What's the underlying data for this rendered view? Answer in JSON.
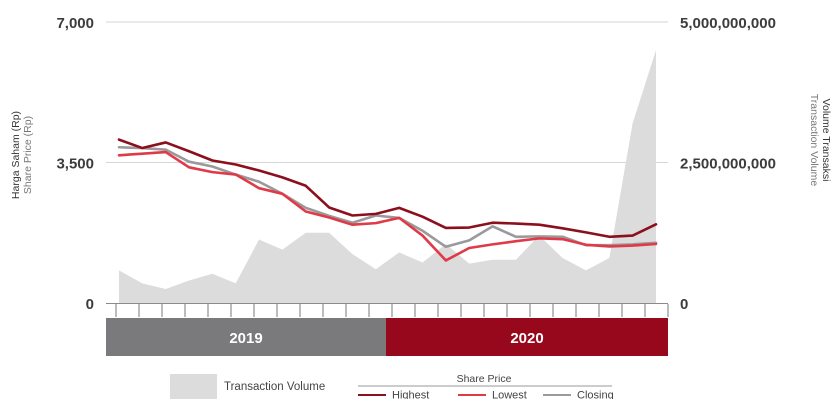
{
  "chart_data": {
    "type": "line",
    "ylabel_left": [
      "Harga Saham (Rp)",
      "Share Price (Rp)"
    ],
    "ylabel_right": [
      "Volume Transaksi",
      "Transaction Volume"
    ],
    "y_left_ticks": [
      0,
      3500,
      7000
    ],
    "y_left_tick_labels": [
      "0",
      "3,500",
      "7,000"
    ],
    "y_left_lim": [
      0,
      7000
    ],
    "y_right_ticks": [
      0,
      2500000000,
      5000000000
    ],
    "y_right_tick_labels": [
      "0",
      "2,500,000,000",
      "5,000,000,000"
    ],
    "y_right_lim": [
      0,
      5000000000
    ],
    "periods": [
      {
        "label": "2019",
        "color": "#7a7a7c"
      },
      {
        "label": "2020",
        "color": "#98081c"
      }
    ],
    "x_count": 24,
    "x_per_period": 12,
    "series": [
      {
        "name": "Highest",
        "axis": "left",
        "kind": "line",
        "color": "#8b0f1c",
        "values": [
          4070,
          3860,
          4000,
          3780,
          3550,
          3450,
          3300,
          3130,
          2920,
          2380,
          2180,
          2220,
          2370,
          2150,
          1870,
          1880,
          2000,
          1980,
          1950,
          1860,
          1760,
          1650,
          1680,
          1960
        ]
      },
      {
        "name": "Lowest",
        "axis": "left",
        "kind": "line",
        "color": "#e03a48",
        "values": [
          3680,
          3720,
          3760,
          3380,
          3260,
          3200,
          2860,
          2720,
          2280,
          2130,
          1950,
          1990,
          2120,
          1680,
          1060,
          1370,
          1460,
          1540,
          1610,
          1590,
          1450,
          1410,
          1430,
          1470
        ]
      },
      {
        "name": "Closing",
        "axis": "left",
        "kind": "line",
        "color": "#9a9a9c",
        "values": [
          3880,
          3860,
          3820,
          3520,
          3400,
          3200,
          3020,
          2720,
          2370,
          2170,
          2000,
          2180,
          2120,
          1800,
          1400,
          1560,
          1910,
          1650,
          1660,
          1650,
          1440,
          1440,
          1460,
          1500
        ]
      },
      {
        "name": "Transaction Volume",
        "axis": "right",
        "kind": "area",
        "color": "#dcdcdc",
        "values": [
          580000000,
          350000000,
          250000000,
          400000000,
          520000000,
          350000000,
          1130000000,
          950000000,
          1250000000,
          1250000000,
          870000000,
          600000000,
          900000000,
          720000000,
          1050000000,
          700000000,
          770000000,
          770000000,
          1200000000,
          800000000,
          580000000,
          800000000,
          3200000000,
          4500000000
        ]
      }
    ],
    "legend": {
      "volume_label": "Transaction Volume",
      "group_title": "Share Price",
      "items": [
        {
          "name": "Highest",
          "color": "#8b0f1c"
        },
        {
          "name": "Lowest",
          "color": "#e03a48"
        },
        {
          "name": "Closing",
          "color": "#9a9a9c"
        }
      ],
      "placement": "bottom"
    },
    "grid": true
  }
}
